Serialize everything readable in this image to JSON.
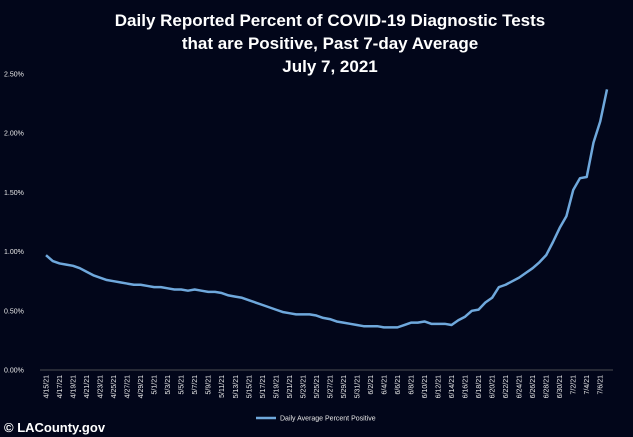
{
  "chart_data": {
    "type": "line",
    "title": [
      "Daily Reported Percent of COVID-19 Diagnostic Tests",
      "that are Positive, Past 7-day Average"
    ],
    "subtitle": "July 7, 2021",
    "credit": "© LACounty.gov",
    "categories": [
      "4/15/21",
      null,
      "4/17/21",
      null,
      "4/19/21",
      null,
      "4/21/21",
      null,
      "4/23/21",
      null,
      "4/25/21",
      null,
      "4/27/21",
      null,
      "4/29/21",
      null,
      "5/1/21",
      null,
      "5/3/21",
      null,
      "5/5/21",
      null,
      "5/7/21",
      null,
      "5/9/21",
      null,
      "5/11/21",
      null,
      "5/13/21",
      null,
      "5/15/21",
      null,
      "5/17/21",
      null,
      "5/19/21",
      null,
      "5/21/21",
      null,
      "5/23/21",
      null,
      "5/25/21",
      null,
      "5/27/21",
      null,
      "5/29/21",
      null,
      "5/31/21",
      null,
      "6/2/21",
      null,
      "6/4/21",
      null,
      "6/6/21",
      null,
      "6/8/21",
      null,
      "6/10/21",
      null,
      "6/12/21",
      null,
      "6/14/21",
      null,
      "6/16/21",
      null,
      "6/18/21",
      null,
      "6/20/21",
      null,
      "6/22/21",
      null,
      "6/24/21",
      null,
      "6/26/21",
      null,
      "6/28/21",
      null,
      "6/30/21",
      null,
      "7/2/21",
      null,
      "7/4/21",
      null,
      "7/6/21",
      null
    ],
    "series": [
      {
        "name": "Daily Average Percent Positive",
        "color": "#6fa8dc",
        "values": [
          0.97,
          0.92,
          0.9,
          0.89,
          0.88,
          0.86,
          0.83,
          0.8,
          0.78,
          0.76,
          0.75,
          0.74,
          0.73,
          0.72,
          0.72,
          0.71,
          0.7,
          0.7,
          0.69,
          0.68,
          0.68,
          0.67,
          0.68,
          0.67,
          0.66,
          0.66,
          0.65,
          0.63,
          0.62,
          0.61,
          0.59,
          0.57,
          0.55,
          0.53,
          0.51,
          0.49,
          0.48,
          0.47,
          0.47,
          0.47,
          0.46,
          0.44,
          0.43,
          0.41,
          0.4,
          0.39,
          0.38,
          0.37,
          0.37,
          0.37,
          0.36,
          0.36,
          0.36,
          0.38,
          0.4,
          0.4,
          0.41,
          0.39,
          0.39,
          0.39,
          0.38,
          0.42,
          0.45,
          0.5,
          0.51,
          0.57,
          0.61,
          0.7,
          0.72,
          0.75,
          0.78,
          0.82,
          0.86,
          0.91,
          0.97,
          1.08,
          1.2,
          1.3,
          1.52,
          1.62,
          1.63,
          1.92,
          2.1,
          2.37
        ]
      }
    ],
    "ylim": [
      0,
      2.5
    ],
    "yticks": [
      {
        "value": 0,
        "label": "0.00%"
      },
      {
        "value": 0.5,
        "label": "0.50%"
      },
      {
        "value": 1,
        "label": "1.00%"
      },
      {
        "value": 1.5,
        "label": "1.50%"
      },
      {
        "value": 2,
        "label": "2.00%"
      },
      {
        "value": 2.5,
        "label": "2.50%"
      }
    ],
    "grid": false,
    "legend": "bottom"
  }
}
